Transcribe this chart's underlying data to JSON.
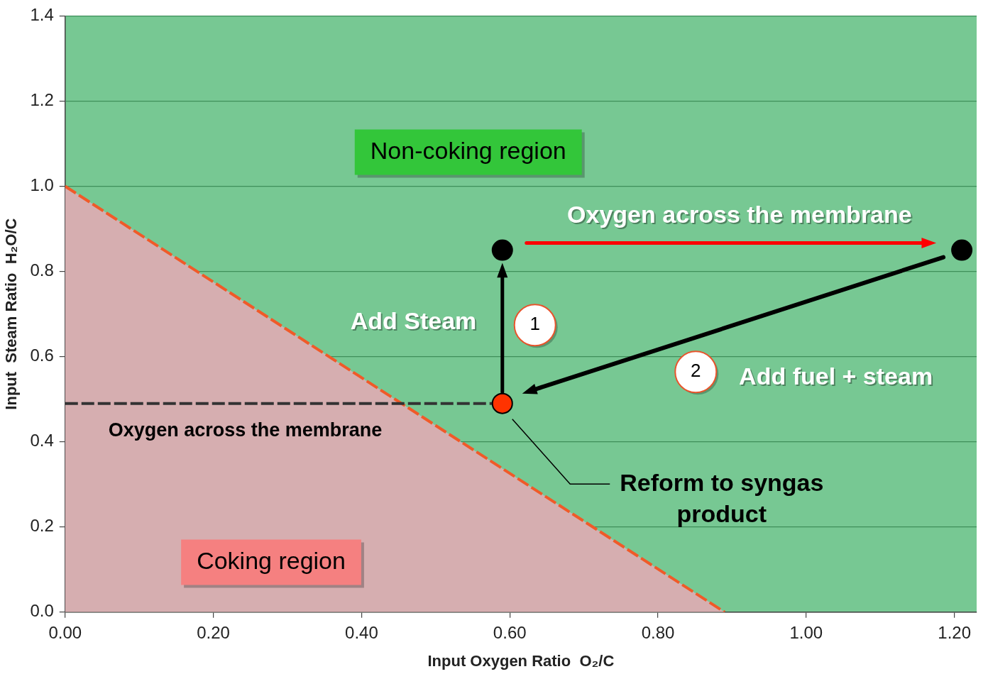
{
  "chart_data": {
    "type": "area",
    "xlabel": "Input Oxygen Ratio  O₂/C",
    "ylabel": "Input  Steam Ratio  H₂O/C",
    "xlim": [
      0,
      1.23
    ],
    "ylim": [
      0,
      1.4
    ],
    "xticks": [
      {
        "value": 0,
        "label": "0.00"
      },
      {
        "value": 0.2,
        "label": "0.20"
      },
      {
        "value": 0.4,
        "label": "0.40"
      },
      {
        "value": 0.6,
        "label": "0.60"
      },
      {
        "value": 0.8,
        "label": "0.80"
      },
      {
        "value": 1,
        "label": "1.00"
      },
      {
        "value": 1.2,
        "label": "1.20"
      }
    ],
    "yticks": [
      {
        "value": 0,
        "label": "0.0"
      },
      {
        "value": 0.2,
        "label": "0.2"
      },
      {
        "value": 0.4,
        "label": "0.4"
      },
      {
        "value": 0.6,
        "label": "0.6"
      },
      {
        "value": 0.8,
        "label": "0.8"
      },
      {
        "value": 1,
        "label": "1.0"
      },
      {
        "value": 1.2,
        "label": "1.2"
      },
      {
        "value": 1.4,
        "label": "1.4"
      }
    ],
    "grid": "y",
    "legend": false,
    "series": [
      {
        "color": "#d6aeb0",
        "line_style": "dashed",
        "x": [
          0,
          0.89
        ],
        "values": [
          1.0,
          0.0
        ]
      },
      {
        "type": "line",
        "color": "#333333",
        "line_style": "dashed",
        "x": [
          0,
          0.59
        ],
        "values": [
          0.49,
          0.49
        ]
      },
      {
        "type": "scatter",
        "marker": "circle",
        "colors": [
          "#ff3300",
          "#000000",
          "#000000"
        ],
        "x": [
          0.59,
          0.59,
          1.21
        ],
        "values": [
          0.49,
          0.85,
          0.85
        ]
      }
    ],
    "annotations": [
      "Non-coking region",
      "Coking region",
      "Oxygen across the membrane",
      "Add Steam",
      "1",
      "2",
      "Add fuel + steam",
      "Oxygen across the membrane",
      "Reform to syngas product"
    ]
  }
}
